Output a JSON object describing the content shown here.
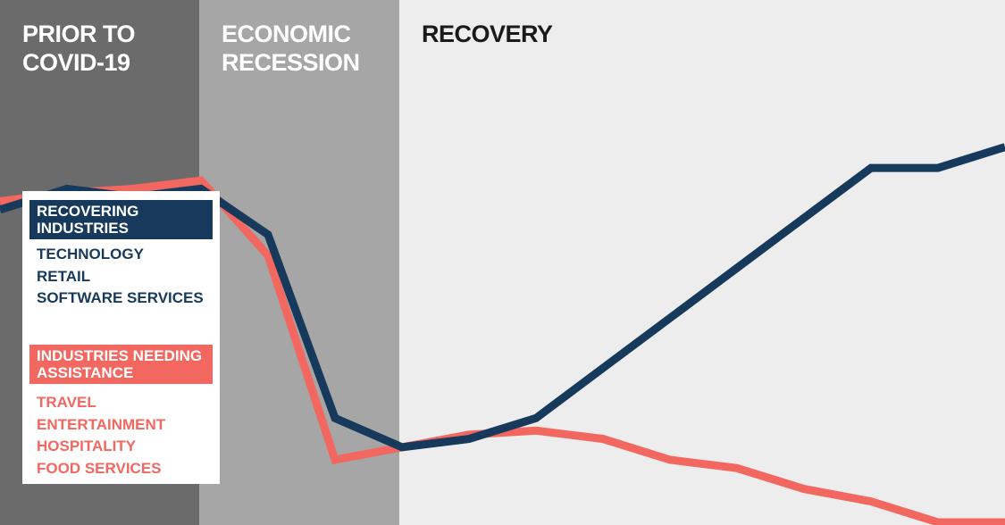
{
  "phases": [
    {
      "label": "PRIOR TO\nCOVID-19",
      "background": "#6b6b6b",
      "text_color": "#ffffff"
    },
    {
      "label": "ECONOMIC\nRECESSION",
      "background": "#a6a6a6",
      "text_color": "#ffffff"
    },
    {
      "label": "RECOVERY",
      "background": "#ededed",
      "text_color": "#1a1a1a"
    }
  ],
  "legend": {
    "recovering": {
      "title": "RECOVERING\nINDUSTRIES",
      "items": [
        "TECHNOLOGY",
        "RETAIL",
        "SOFTWARE SERVICES"
      ],
      "color": "#173a5c"
    },
    "assistance": {
      "title": "INDUSTRIES NEEDING\nASSISTANCE",
      "items": [
        "TRAVEL",
        "ENTERTAINMENT",
        "HOSPITALITY",
        "FOOD SERVICES"
      ],
      "color": "#f2675f"
    }
  },
  "chart_data": {
    "type": "line",
    "x": [
      0,
      1,
      2,
      3,
      4,
      5,
      6,
      7,
      8,
      9,
      10,
      11,
      12,
      13,
      14,
      15
    ],
    "xlim": [
      0,
      15
    ],
    "ylim": [
      0,
      100
    ],
    "axes_shown": false,
    "grid": false,
    "series": [
      {
        "legend_key": "recovering",
        "color": "#173a5c",
        "values": [
          75,
          80,
          78,
          80,
          69,
          25,
          18,
          20,
          25,
          37,
          49,
          61,
          73,
          85,
          85,
          90
        ]
      },
      {
        "legend_key": "assistance",
        "color": "#f2675f",
        "values": [
          77,
          79,
          80,
          82,
          64,
          15,
          18,
          21,
          22,
          20,
          15,
          13,
          8,
          5,
          0,
          0
        ]
      }
    ]
  }
}
